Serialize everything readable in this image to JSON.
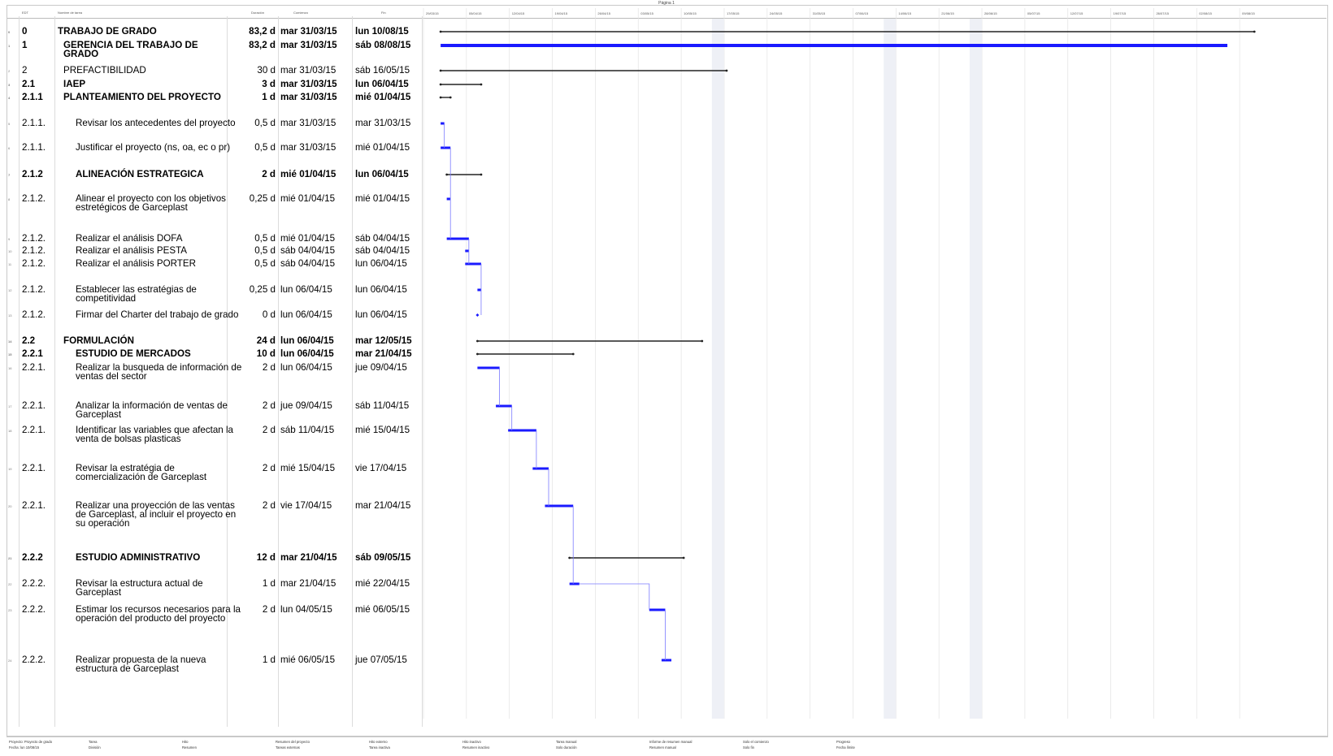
{
  "page": {
    "caption": "Página 1"
  },
  "columns": {
    "edt": "EDT",
    "name": "Nombre de tarea",
    "dur": "Duración",
    "start": "Comienzo",
    "end": "Fin"
  },
  "timescale_labels": [
    "29/03/15",
    "05/04/15",
    "12/04/15",
    "19/04/15",
    "26/04/15",
    "03/05/15",
    "10/05/15",
    "17/05/15",
    "24/05/15",
    "31/05/15",
    "07/06/15",
    "14/06/15",
    "21/06/15",
    "28/06/15",
    "05/07/15",
    "12/07/15",
    "19/07/15",
    "26/07/15",
    "02/08/15",
    "09/08/15"
  ],
  "tasks": [
    {
      "idx": "0",
      "edt": "0",
      "name": "TRABAJO DE GRADO",
      "dur": "83,2 d",
      "start": "mar 31/03/15",
      "end": "lun 10/08/15",
      "lvl": 0,
      "bold": true,
      "summary": true
    },
    {
      "idx": "1",
      "edt": "1",
      "name": "GERENCIA DEL TRABAJO DE GRADO",
      "dur": "83,2 d",
      "start": "mar 31/03/15",
      "end": "sáb 08/08/15",
      "lvl": 1,
      "bold": true,
      "summary": false
    },
    {
      "idx": "2",
      "edt": "2",
      "name": "PREFACTIBILIDAD",
      "dur": "30 d",
      "start": "mar 31/03/15",
      "end": "sáb 16/05/15",
      "lvl": 1,
      "bold": false,
      "summary": true
    },
    {
      "idx": "3",
      "edt": "2.1",
      "name": "IAEP",
      "dur": "3 d",
      "start": "mar 31/03/15",
      "end": "lun 06/04/15",
      "lvl": 1,
      "bold": true,
      "summary": true
    },
    {
      "idx": "4",
      "edt": "2.1.1",
      "name": "PLANTEAMIENTO DEL PROYECTO",
      "dur": "1 d",
      "start": "mar 31/03/15",
      "end": "mié 01/04/15",
      "lvl": 1,
      "bold": true,
      "summary": true
    },
    {
      "idx": "5",
      "edt": "2.1.1.",
      "name": "Revisar los antecedentes del proyecto",
      "dur": "0,5 d",
      "start": "mar 31/03/15",
      "end": "mar 31/03/15",
      "lvl": 2,
      "bold": false,
      "summary": false
    },
    {
      "idx": "6",
      "edt": "2.1.1.",
      "name": "Justificar el proyecto (ns, oa, ec o pr)",
      "dur": "0,5 d",
      "start": "mar 31/03/15",
      "end": "mié 01/04/15",
      "lvl": 2,
      "bold": false,
      "summary": false
    },
    {
      "idx": "7",
      "edt": "2.1.2",
      "name": "ALINEACIÓN ESTRATEGICA",
      "dur": "2 d",
      "start": "mié 01/04/15",
      "end": "lun 06/04/15",
      "lvl": 2,
      "bold": true,
      "summary": true
    },
    {
      "idx": "8",
      "edt": "2.1.2.",
      "name": "Alinear el proyecto con los objetivos estretégicos de Garceplast",
      "dur": "0,25 d",
      "start": "mié 01/04/15",
      "end": "mié 01/04/15",
      "lvl": 2,
      "bold": false,
      "summary": false
    },
    {
      "idx": "9",
      "edt": "2.1.2.",
      "name": "Realizar el análisis DOFA",
      "dur": "0,5 d",
      "start": "mié 01/04/15",
      "end": "sáb 04/04/15",
      "lvl": 2,
      "bold": false,
      "summary": false
    },
    {
      "idx": "10",
      "edt": "2.1.2.",
      "name": "Realizar el análisis PESTA",
      "dur": "0,5 d",
      "start": "sáb 04/04/15",
      "end": "sáb 04/04/15",
      "lvl": 2,
      "bold": false,
      "summary": false
    },
    {
      "idx": "11",
      "edt": "2.1.2.",
      "name": "Realizar el análisis PORTER",
      "dur": "0,5 d",
      "start": "sáb 04/04/15",
      "end": "lun 06/04/15",
      "lvl": 2,
      "bold": false,
      "summary": false
    },
    {
      "idx": "12",
      "edt": "2.1.2.",
      "name": "Establecer las estratégias de competitividad",
      "dur": "0,25 d",
      "start": "lun 06/04/15",
      "end": "lun 06/04/15",
      "lvl": 2,
      "bold": false,
      "summary": false
    },
    {
      "idx": "13",
      "edt": "2.1.2.",
      "name": "Firmar del Charter del trabajo de grado",
      "dur": "0 d",
      "start": "lun 06/04/15",
      "end": "lun 06/04/15",
      "lvl": 2,
      "bold": false,
      "summary": false,
      "milestone": true
    },
    {
      "idx": "14",
      "edt": "2.2",
      "name": "FORMULACIÓN",
      "dur": "24 d",
      "start": "lun 06/04/15",
      "end": "mar 12/05/15",
      "lvl": 1,
      "bold": true,
      "summary": true
    },
    {
      "idx": "15",
      "edt": "2.2.1",
      "name": "ESTUDIO DE MERCADOS",
      "dur": "10 d",
      "start": "lun 06/04/15",
      "end": "mar 21/04/15",
      "lvl": 2,
      "bold": true,
      "summary": true
    },
    {
      "idx": "16",
      "edt": "2.2.1.",
      "name": "Realizar la busqueda de información de ventas del sector",
      "dur": "2 d",
      "start": "lun 06/04/15",
      "end": "jue 09/04/15",
      "lvl": 2,
      "bold": false,
      "summary": false
    },
    {
      "idx": "17",
      "edt": "2.2.1.",
      "name": "Analizar la información de ventas de Garceplast",
      "dur": "2 d",
      "start": "jue 09/04/15",
      "end": "sáb 11/04/15",
      "lvl": 2,
      "bold": false,
      "summary": false
    },
    {
      "idx": "18",
      "edt": "2.2.1.",
      "name": "Identificar las variables que afectan la venta de bolsas plasticas",
      "dur": "2 d",
      "start": "sáb 11/04/15",
      "end": "mié 15/04/15",
      "lvl": 2,
      "bold": false,
      "summary": false
    },
    {
      "idx": "19",
      "edt": "2.2.1.",
      "name": "Revisar la estratégia de comercialización de Garceplast",
      "dur": "2 d",
      "start": "mié 15/04/15",
      "end": "vie 17/04/15",
      "lvl": 2,
      "bold": false,
      "summary": false
    },
    {
      "idx": "20",
      "edt": "2.2.1.",
      "name": "Realizar una proyección de las ventas de Garceplast, al incluir el proyecto en su operación",
      "dur": "2 d",
      "start": "vie 17/04/15",
      "end": "mar 21/04/15",
      "lvl": 2,
      "bold": false,
      "summary": false
    },
    {
      "idx": "21",
      "edt": "2.2.2",
      "name": "ESTUDIO ADMINISTRATIVO",
      "dur": "12 d",
      "start": "mar 21/04/15",
      "end": "sáb 09/05/15",
      "lvl": 2,
      "bold": true,
      "summary": true
    },
    {
      "idx": "22",
      "edt": "2.2.2.",
      "name": "Revisar la estructura actual de Garceplast",
      "dur": "1 d",
      "start": "mar 21/04/15",
      "end": "mié 22/04/15",
      "lvl": 2,
      "bold": false,
      "summary": false
    },
    {
      "idx": "23",
      "edt": "2.2.2.",
      "name": "Estimar los recursos necesarios para la operación del producto del proyecto",
      "dur": "2 d",
      "start": "lun 04/05/15",
      "end": "mié 06/05/15",
      "lvl": 2,
      "bold": false,
      "summary": false
    },
    {
      "idx": "24",
      "edt": "2.2.2.",
      "name": "Realizar propuesta de la nueva estructura de Garceplast",
      "dur": "1 d",
      "start": "mié 06/05/15",
      "end": "jue 07/05/15",
      "lvl": 2,
      "bold": false,
      "summary": false
    }
  ],
  "legend": {
    "project_line1": "Proyecto: Proyecto de grado",
    "project_line2": "Fecha: lun 10/08/15",
    "items": [
      "Tarea",
      "División",
      "Hito",
      "Resumen",
      "Resumen del proyecto",
      "Tareas externas",
      "Hito externo",
      "Tarea inactiva",
      "Hito inactivo",
      "Resumen inactivo",
      "Tarea manual",
      "Solo duración",
      "Informe de resumen manual",
      "Resumen manual",
      "Solo el comienzo",
      "Solo fin",
      "Progreso",
      "Fecha límite"
    ]
  },
  "colors": {
    "task": "#1a1aff",
    "summary": "#222222",
    "link": "#7b7bff",
    "weekend": "#eef0f6"
  }
}
